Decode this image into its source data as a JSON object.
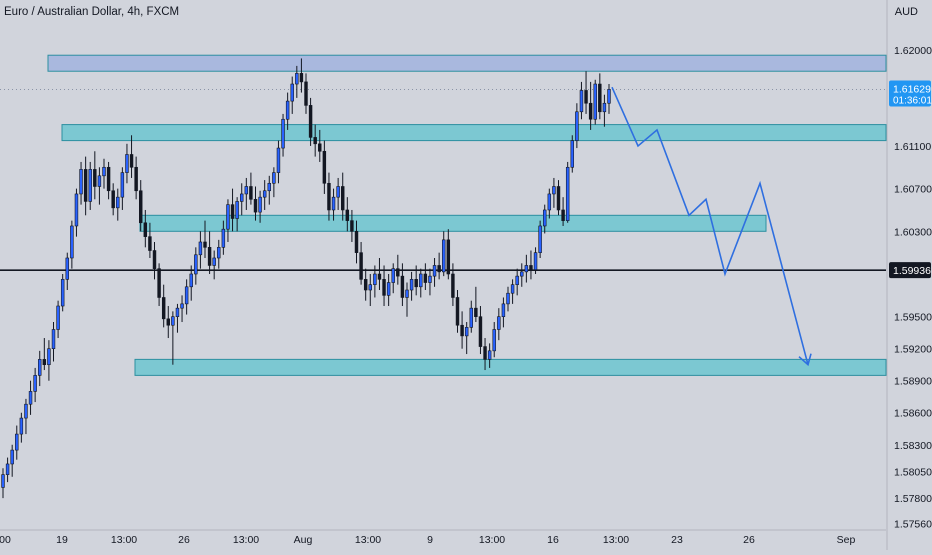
{
  "header": {
    "title": "Euro / Australian Dollar, 4h, FXCM",
    "currency": "AUD"
  },
  "price_axis": {
    "ticks": [
      "1.62000",
      "1.61100",
      "1.60700",
      "1.60300",
      "1.59500",
      "1.59200",
      "1.58900",
      "1.58600",
      "1.58300",
      "1.58050",
      "1.57800",
      "1.57560"
    ],
    "current_price": "1.61629",
    "countdown": "01:36:01",
    "horizontal_line_label": "1.59936"
  },
  "time_axis": {
    "labels": [
      "00",
      "19",
      "13:00",
      "26",
      "13:00",
      "Aug",
      "13:00",
      "9",
      "13:00",
      "16",
      "13:00",
      "23",
      "26",
      "Sep"
    ]
  },
  "colors": {
    "background": "#d1d4dc",
    "zone_fill": "#7cc8d2",
    "zone_stroke": "#2c8fa0",
    "top_zone_fill": "#a9b8de",
    "candle_up": "#2962ff",
    "candle_down": "#131722",
    "projection_line": "#2f6fe0",
    "price_label_bg": "#2196f3"
  },
  "chart_data": {
    "type": "candlestick",
    "instrument": "EUR/AUD",
    "timeframe": "4h",
    "ylim": [
      1.5752,
      1.6228
    ],
    "candles": [
      [
        1.579,
        1.5808,
        1.578,
        1.5802
      ],
      [
        1.5802,
        1.5818,
        1.5795,
        1.5812
      ],
      [
        1.5812,
        1.583,
        1.58,
        1.5825
      ],
      [
        1.5825,
        1.5848,
        1.5816,
        1.584
      ],
      [
        1.584,
        1.586,
        1.5832,
        1.5855
      ],
      [
        1.5855,
        1.5873,
        1.584,
        1.5868
      ],
      [
        1.5868,
        1.589,
        1.5858,
        1.588
      ],
      [
        1.588,
        1.5902,
        1.587,
        1.5895
      ],
      [
        1.5895,
        1.5918,
        1.5885,
        1.591
      ],
      [
        1.591,
        1.593,
        1.59,
        1.5905
      ],
      [
        1.5905,
        1.5928,
        1.589,
        1.592
      ],
      [
        1.592,
        1.5945,
        1.5908,
        1.5938
      ],
      [
        1.5938,
        1.5965,
        1.593,
        1.596
      ],
      [
        1.596,
        1.599,
        1.5955,
        1.5985
      ],
      [
        1.5985,
        1.601,
        1.5975,
        1.6005
      ],
      [
        1.6005,
        1.604,
        1.5995,
        1.6035
      ],
      [
        1.6035,
        1.607,
        1.6025,
        1.6065
      ],
      [
        1.6065,
        1.6095,
        1.6055,
        1.6088
      ],
      [
        1.6088,
        1.61,
        1.6045,
        1.6058
      ],
      [
        1.6058,
        1.6095,
        1.605,
        1.6088
      ],
      [
        1.6088,
        1.6105,
        1.606,
        1.6072
      ],
      [
        1.6072,
        1.609,
        1.6055,
        1.6082
      ],
      [
        1.6082,
        1.6098,
        1.607,
        1.609
      ],
      [
        1.609,
        1.6095,
        1.606,
        1.6068
      ],
      [
        1.6068,
        1.6075,
        1.6045,
        1.6052
      ],
      [
        1.6052,
        1.607,
        1.604,
        1.6062
      ],
      [
        1.6062,
        1.609,
        1.605,
        1.6085
      ],
      [
        1.6085,
        1.6112,
        1.6075,
        1.6102
      ],
      [
        1.6102,
        1.612,
        1.608,
        1.609
      ],
      [
        1.609,
        1.61,
        1.606,
        1.6068
      ],
      [
        1.6068,
        1.6078,
        1.603,
        1.6038
      ],
      [
        1.6038,
        1.605,
        1.6015,
        1.6025
      ],
      [
        1.6025,
        1.6038,
        1.6005,
        1.6012
      ],
      [
        1.6012,
        1.602,
        1.5985,
        1.5995
      ],
      [
        1.5995,
        1.6,
        1.596,
        1.5968
      ],
      [
        1.5968,
        1.598,
        1.594,
        1.5948
      ],
      [
        1.5948,
        1.596,
        1.593,
        1.5942
      ],
      [
        1.5942,
        1.5955,
        1.5905,
        1.595
      ],
      [
        1.595,
        1.5962,
        1.5935,
        1.5958
      ],
      [
        1.5958,
        1.597,
        1.5945,
        1.5962
      ],
      [
        1.5962,
        1.5985,
        1.5952,
        1.5978
      ],
      [
        1.5978,
        1.5998,
        1.5965,
        1.599
      ],
      [
        1.599,
        1.6015,
        1.598,
        1.6008
      ],
      [
        1.6008,
        1.603,
        1.5995,
        1.602
      ],
      [
        1.602,
        1.604,
        1.6005,
        1.6015
      ],
      [
        1.6015,
        1.603,
        1.599,
        1.5998
      ],
      [
        1.5998,
        1.6012,
        1.5985,
        1.6005
      ],
      [
        1.6005,
        1.6022,
        1.5995,
        1.6015
      ],
      [
        1.6015,
        1.604,
        1.6008,
        1.6032
      ],
      [
        1.6032,
        1.606,
        1.602,
        1.6055
      ],
      [
        1.6055,
        1.607,
        1.603,
        1.6042
      ],
      [
        1.6042,
        1.6062,
        1.603,
        1.6058
      ],
      [
        1.6058,
        1.6075,
        1.6045,
        1.6065
      ],
      [
        1.6065,
        1.608,
        1.605,
        1.6072
      ],
      [
        1.6072,
        1.6085,
        1.6055,
        1.606
      ],
      [
        1.606,
        1.6072,
        1.604,
        1.6048
      ],
      [
        1.6048,
        1.6068,
        1.6038,
        1.6062
      ],
      [
        1.6062,
        1.6078,
        1.605,
        1.6068
      ],
      [
        1.6068,
        1.6082,
        1.6055,
        1.6075
      ],
      [
        1.6075,
        1.609,
        1.6062,
        1.6085
      ],
      [
        1.6085,
        1.6115,
        1.6075,
        1.6108
      ],
      [
        1.6108,
        1.614,
        1.61,
        1.6135
      ],
      [
        1.6135,
        1.616,
        1.6125,
        1.6152
      ],
      [
        1.6152,
        1.6175,
        1.614,
        1.6168
      ],
      [
        1.6168,
        1.6185,
        1.6155,
        1.6178
      ],
      [
        1.6178,
        1.6192,
        1.616,
        1.617
      ],
      [
        1.617,
        1.6178,
        1.614,
        1.6148
      ],
      [
        1.6148,
        1.6155,
        1.611,
        1.6118
      ],
      [
        1.6118,
        1.613,
        1.61,
        1.6112
      ],
      [
        1.6112,
        1.6125,
        1.6095,
        1.6105
      ],
      [
        1.6105,
        1.6115,
        1.6065,
        1.6075
      ],
      [
        1.6075,
        1.6085,
        1.604,
        1.605
      ],
      [
        1.605,
        1.607,
        1.604,
        1.6062
      ],
      [
        1.6062,
        1.608,
        1.605,
        1.6072
      ],
      [
        1.6072,
        1.6085,
        1.604,
        1.605
      ],
      [
        1.605,
        1.6062,
        1.603,
        1.604
      ],
      [
        1.604,
        1.605,
        1.602,
        1.603
      ],
      [
        1.603,
        1.604,
        1.6,
        1.601
      ],
      [
        1.601,
        1.602,
        1.598,
        1.5985
      ],
      [
        1.5985,
        1.5995,
        1.5965,
        1.5975
      ],
      [
        1.5975,
        1.599,
        1.596,
        1.598
      ],
      [
        1.598,
        1.5998,
        1.5968,
        1.599
      ],
      [
        1.599,
        1.6005,
        1.5975,
        1.5985
      ],
      [
        1.5985,
        1.5998,
        1.596,
        1.597
      ],
      [
        1.597,
        1.599,
        1.596,
        1.5982
      ],
      [
        1.5982,
        1.6,
        1.5972,
        1.5995
      ],
      [
        1.5995,
        1.6008,
        1.598,
        1.5988
      ],
      [
        1.5988,
        1.6,
        1.596,
        1.5968
      ],
      [
        1.5968,
        1.5982,
        1.595,
        1.5975
      ],
      [
        1.5975,
        1.5992,
        1.5965,
        1.5985
      ],
      [
        1.5985,
        1.5998,
        1.597,
        1.5978
      ],
      [
        1.5978,
        1.5995,
        1.5968,
        1.599
      ],
      [
        1.599,
        1.6,
        1.5975,
        1.5982
      ],
      [
        1.5982,
        1.5995,
        1.597,
        1.5988
      ],
      [
        1.5988,
        1.6005,
        1.5978,
        1.5998
      ],
      [
        1.5998,
        1.601,
        1.5985,
        1.5992
      ],
      [
        1.5992,
        1.603,
        1.5988,
        1.6022
      ],
      [
        1.6022,
        1.6032,
        1.5985,
        1.599
      ],
      [
        1.599,
        1.6,
        1.596,
        1.5968
      ],
      [
        1.5968,
        1.5975,
        1.5935,
        1.5942
      ],
      [
        1.5942,
        1.5955,
        1.592,
        1.5932
      ],
      [
        1.5932,
        1.5945,
        1.5915,
        1.594
      ],
      [
        1.594,
        1.5965,
        1.5935,
        1.5958
      ],
      [
        1.5958,
        1.5978,
        1.5945,
        1.595
      ],
      [
        1.595,
        1.596,
        1.5915,
        1.5922
      ],
      [
        1.5922,
        1.593,
        1.59,
        1.591
      ],
      [
        1.591,
        1.5925,
        1.5902,
        1.5918
      ],
      [
        1.5918,
        1.5945,
        1.5912,
        1.5938
      ],
      [
        1.5938,
        1.5958,
        1.5928,
        1.595
      ],
      [
        1.595,
        1.5968,
        1.594,
        1.5962
      ],
      [
        1.5962,
        1.5978,
        1.5955,
        1.5972
      ],
      [
        1.5972,
        1.5985,
        1.5962,
        1.598
      ],
      [
        1.598,
        1.5995,
        1.597,
        1.5988
      ],
      [
        1.5988,
        1.6,
        1.5978,
        1.5992
      ],
      [
        1.5992,
        1.6008,
        1.5982,
        1.5998
      ],
      [
        1.5998,
        1.6012,
        1.5985,
        1.5994
      ],
      [
        1.5994,
        1.6015,
        1.599,
        1.601
      ],
      [
        1.601,
        1.604,
        1.6005,
        1.6035
      ],
      [
        1.6035,
        1.6055,
        1.6028,
        1.605
      ],
      [
        1.605,
        1.607,
        1.6042,
        1.6065
      ],
      [
        1.6065,
        1.608,
        1.6052,
        1.6072
      ],
      [
        1.6072,
        1.6078,
        1.6045,
        1.605
      ],
      [
        1.605,
        1.6062,
        1.6035,
        1.604
      ],
      [
        1.604,
        1.6095,
        1.6038,
        1.609
      ],
      [
        1.609,
        1.612,
        1.6085,
        1.6115
      ],
      [
        1.6115,
        1.615,
        1.6108,
        1.6142
      ],
      [
        1.6142,
        1.617,
        1.6135,
        1.6162
      ],
      [
        1.6162,
        1.618,
        1.614,
        1.615
      ],
      [
        1.615,
        1.617,
        1.6125,
        1.6135
      ],
      [
        1.6135,
        1.6172,
        1.613,
        1.6168
      ],
      [
        1.6168,
        1.6178,
        1.6135,
        1.6142
      ],
      [
        1.6142,
        1.6158,
        1.6128,
        1.615
      ],
      [
        1.615,
        1.6168,
        1.614,
        1.6163
      ]
    ],
    "zones": [
      {
        "from": 1.618,
        "to": 1.6195
      },
      {
        "from": 1.6115,
        "to": 1.613
      },
      {
        "from": 1.603,
        "to": 1.6045
      },
      {
        "from": 1.5895,
        "to": 1.591
      }
    ],
    "horizontal_line": 1.59936,
    "projection": [
      1.6165,
      1.611,
      1.6125,
      1.6045,
      1.606,
      1.599,
      1.6075,
      1.5905
    ]
  }
}
